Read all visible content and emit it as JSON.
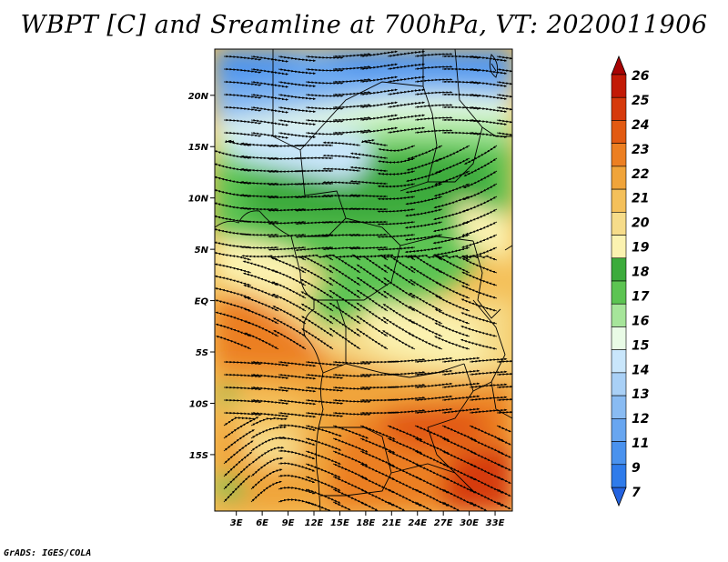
{
  "title": "WBPT [C] and Sreamline at 700hPa, VT: 2020011906",
  "credit": "GrADS: IGES/COLA",
  "y_axis": {
    "labels": [
      "20N",
      "15N",
      "10N",
      "5N",
      "EQ",
      "5S",
      "10S",
      "15S"
    ],
    "values": [
      20,
      15,
      10,
      5,
      0,
      -5,
      -10,
      -15
    ]
  },
  "x_axis": {
    "labels": [
      "3E",
      "6E",
      "9E",
      "12E",
      "15E",
      "18E",
      "21E",
      "24E",
      "27E",
      "30E",
      "33E"
    ],
    "values": [
      3,
      6,
      9,
      12,
      15,
      18,
      21,
      24,
      27,
      30,
      33
    ]
  },
  "map_extent": {
    "lon_min": 0.5,
    "lon_max": 35,
    "lat_min": -20.5,
    "lat_max": 24.5
  },
  "colorbar": {
    "labels": [
      "7",
      "9",
      "11",
      "12",
      "13",
      "14",
      "15",
      "16",
      "17",
      "18",
      "19",
      "20",
      "21",
      "22",
      "23",
      "24",
      "25",
      "26"
    ],
    "colors": [
      "#2463e0",
      "#2f7bea",
      "#4a92ee",
      "#68a6f0",
      "#89bbf2",
      "#a9d0f6",
      "#c9e6fb",
      "#e9fbe6",
      "#a6e59a",
      "#5cc452",
      "#3cab3c",
      "#fbf2b0",
      "#f6dc8a",
      "#f4c05a",
      "#f0a43a",
      "#ec7f22",
      "#e25a12",
      "#d63a0c",
      "#c21a06",
      "#a80404"
    ]
  },
  "regions": [
    {
      "name": "dark-blue-north",
      "color": "#4a8fee",
      "lat": 23,
      "lon": 27
    },
    {
      "name": "light-blue-band",
      "color": "#a9d0f6",
      "lat": 19,
      "lon": 8
    },
    {
      "name": "green-sahel",
      "color": "#5cc452",
      "lat": 10,
      "lon": 14
    },
    {
      "name": "yellow-central",
      "color": "#f6dc8a",
      "lat": -2,
      "lon": 22
    },
    {
      "name": "orange-south",
      "color": "#f0a43a",
      "lat": -12,
      "lon": 10
    },
    {
      "name": "red-southeast",
      "color": "#d63a0c",
      "lat": -17,
      "lon": 33
    }
  ]
}
